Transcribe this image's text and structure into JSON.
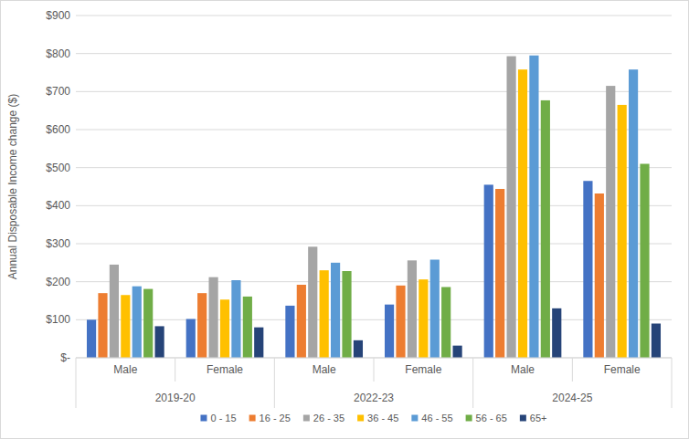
{
  "chart_data": {
    "type": "bar",
    "y_label": "Annual Disposable Income change ($)",
    "categories": [
      "Male",
      "Female",
      "Male",
      "Female",
      "Male",
      "Female"
    ],
    "category_groups": [
      {
        "label": "2019-20",
        "span": 2
      },
      {
        "label": "2022-23",
        "span": 2
      },
      {
        "label": "2024-25",
        "span": 2
      }
    ],
    "series": [
      {
        "name": "0 - 15",
        "color": "#4472c4",
        "values": [
          100,
          102,
          137,
          140,
          455,
          465
        ]
      },
      {
        "name": "16 - 25",
        "color": "#ed7d31",
        "values": [
          170,
          170,
          192,
          190,
          444,
          432
        ]
      },
      {
        "name": "26 - 35",
        "color": "#a5a5a5",
        "values": [
          245,
          212,
          292,
          256,
          793,
          715
        ]
      },
      {
        "name": "36 - 45",
        "color": "#ffc000",
        "values": [
          165,
          153,
          230,
          206,
          758,
          665
        ]
      },
      {
        "name": "46 - 55",
        "color": "#5b9bd5",
        "values": [
          188,
          204,
          250,
          258,
          795,
          758
        ]
      },
      {
        "name": "56 - 65",
        "color": "#70ad47",
        "values": [
          181,
          161,
          228,
          186,
          677,
          510
        ]
      },
      {
        "name": "65+",
        "color": "#264478",
        "values": [
          83,
          80,
          46,
          32,
          130,
          90
        ]
      }
    ],
    "ylim": [
      0,
      900
    ],
    "yticks": [
      {
        "value": 0,
        "label": "$-"
      },
      {
        "value": 100,
        "label": "$100"
      },
      {
        "value": 200,
        "label": "$200"
      },
      {
        "value": 300,
        "label": "$300"
      },
      {
        "value": 400,
        "label": "$400"
      },
      {
        "value": 500,
        "label": "$500"
      },
      {
        "value": 600,
        "label": "$600"
      },
      {
        "value": 700,
        "label": "$700"
      },
      {
        "value": 800,
        "label": "$800"
      },
      {
        "value": 900,
        "label": "$900"
      }
    ],
    "grid": true,
    "legend": "bottom"
  }
}
